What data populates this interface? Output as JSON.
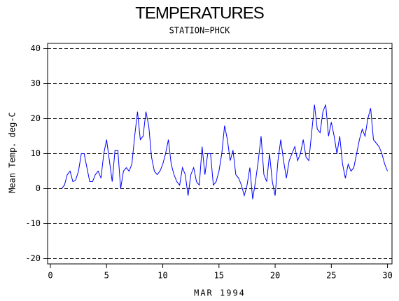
{
  "chart_data": {
    "type": "line",
    "title": "TEMPERATURES",
    "subtitle": "STATION=PHCK",
    "x_label": "MAR 1994",
    "y_label": "Mean Temp. deg-C",
    "xlim": [
      -0.25,
      30.4
    ],
    "ylim": [
      -21.5,
      41.5
    ],
    "xticks": [
      0,
      5,
      10,
      15,
      20,
      25,
      30
    ],
    "yticks": [
      -20,
      -10,
      0,
      10,
      20,
      30,
      40
    ],
    "grid": true,
    "x": [
      1,
      1.25,
      1.5,
      1.75,
      2,
      2.25,
      2.5,
      2.75,
      3,
      3.25,
      3.5,
      3.75,
      4,
      4.25,
      4.5,
      4.75,
      5,
      5.25,
      5.5,
      5.75,
      6,
      6.25,
      6.5,
      6.75,
      7,
      7.25,
      7.5,
      7.75,
      8,
      8.25,
      8.5,
      8.75,
      9,
      9.25,
      9.5,
      9.75,
      10,
      10.25,
      10.5,
      10.75,
      11,
      11.25,
      11.5,
      11.75,
      12,
      12.25,
      12.5,
      12.75,
      13,
      13.25,
      13.5,
      13.75,
      14,
      14.25,
      14.5,
      14.75,
      15,
      15.25,
      15.5,
      15.75,
      16,
      16.25,
      16.5,
      16.75,
      17,
      17.25,
      17.5,
      17.75,
      18,
      18.25,
      18.5,
      18.75,
      19,
      19.25,
      19.5,
      19.75,
      20,
      20.25,
      20.5,
      20.75,
      21,
      21.25,
      21.5,
      21.75,
      22,
      22.25,
      22.5,
      22.75,
      23,
      23.25,
      23.5,
      23.75,
      24,
      24.25,
      24.5,
      24.75,
      25,
      25.25,
      25.5,
      25.75,
      26,
      26.25,
      26.5,
      26.75,
      27,
      27.25,
      27.5,
      27.75,
      28,
      28.25,
      28.5,
      28.75,
      29,
      29.25,
      29.5,
      29.75,
      30
    ],
    "series": [
      {
        "name": "Mean Temp",
        "color": "#0000ff",
        "values": [
          0,
          1,
          4,
          5,
          2,
          2.5,
          5,
          10,
          10,
          6,
          2,
          2,
          4,
          5,
          3,
          10,
          14,
          8,
          2,
          11,
          11,
          0,
          5,
          6,
          5,
          7,
          15,
          22,
          14,
          15,
          22,
          18,
          9,
          5,
          4,
          5,
          7,
          10,
          14,
          7,
          4,
          2,
          1,
          6,
          4,
          -2,
          4,
          6,
          2,
          1,
          12,
          4,
          10,
          10,
          1,
          2,
          5,
          10,
          18,
          14,
          8,
          11,
          4,
          3,
          1,
          -2,
          1,
          6,
          -3,
          2,
          8,
          15,
          4,
          2,
          10,
          2,
          -2,
          8,
          14,
          8,
          3,
          8,
          10,
          12,
          8,
          10,
          14,
          9,
          8,
          16,
          24,
          17,
          16,
          22,
          24,
          15,
          19,
          15,
          10,
          15,
          7,
          3,
          7,
          5,
          6,
          10,
          14,
          17,
          15,
          20,
          23,
          14,
          13,
          12,
          10,
          7,
          5
        ]
      }
    ]
  }
}
